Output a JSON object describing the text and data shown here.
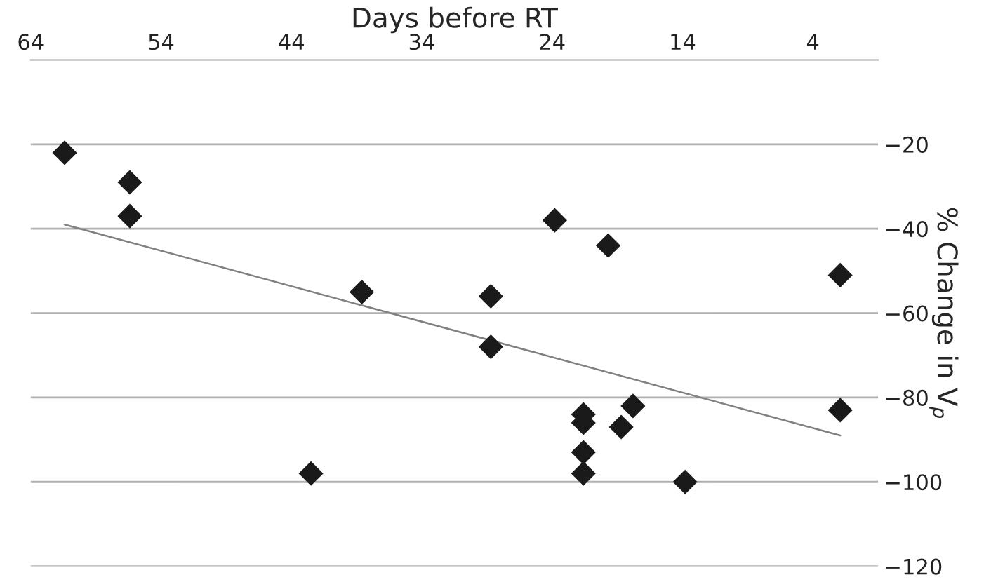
{
  "chart_data": {
    "type": "scatter",
    "xlabel": "Days before RT",
    "ylabel": "% Change in V$_{p}$",
    "xlim": [
      64,
      -1
    ],
    "ylim": [
      -120,
      0
    ],
    "xticks": [
      64,
      54,
      44,
      34,
      24,
      14,
      4
    ],
    "yticks": [
      -20,
      -40,
      -60,
      -80,
      -100,
      -120
    ],
    "grid": "y",
    "marker": "diamond",
    "series": [
      {
        "color": "#1a1a1a",
        "x": [
          61.4,
          56.4,
          56.4,
          38.6,
          42.5,
          23.8,
          19.7,
          1.9,
          28.7,
          28.7,
          21.6,
          21.6,
          21.6,
          21.6,
          17.8,
          18.7,
          13.8,
          1.9
        ],
        "values": [
          -22,
          -29,
          -37,
          -55,
          -98,
          -38,
          -44,
          -51,
          -56,
          -68,
          -84,
          -86,
          -93,
          -98,
          -82,
          -87,
          -100,
          -83
        ]
      },
      {
        "type": "line",
        "marker": "none",
        "color": "#808080",
        "x": [
          61.4,
          1.9
        ],
        "values": [
          -39,
          -89
        ]
      }
    ]
  }
}
